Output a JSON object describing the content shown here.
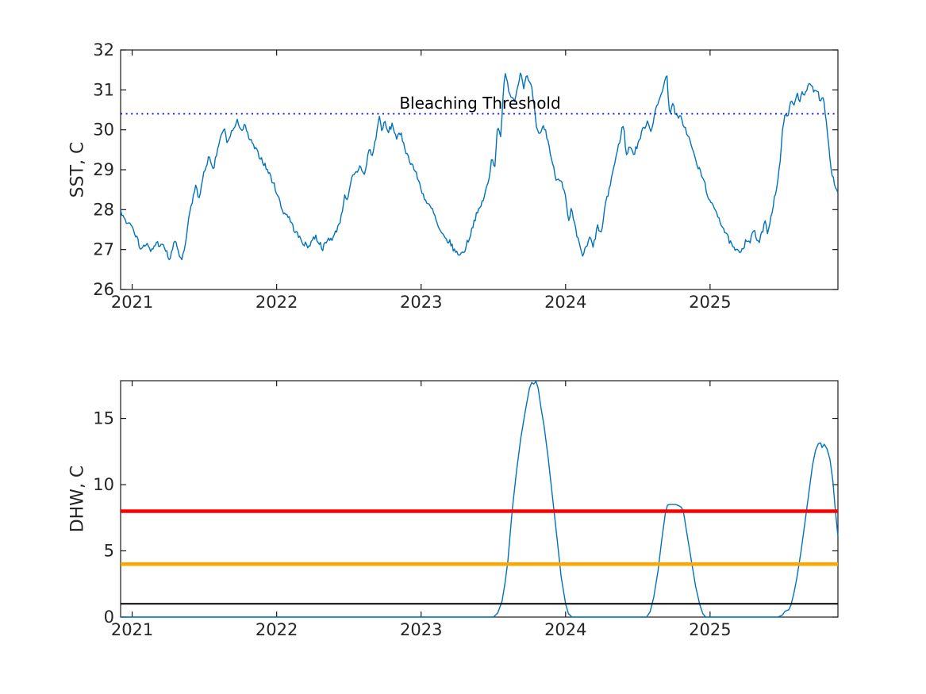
{
  "figure": {
    "background": "#ffffff",
    "axes_color": "#1a1a1a",
    "tick_label_color": "#262626"
  },
  "chart_data": [
    {
      "type": "line",
      "title": "",
      "xlabel": "",
      "ylabel": "SST, C",
      "xlim": [
        2020.92,
        2025.885
      ],
      "ylim": [
        26,
        32
      ],
      "xticks": [
        2021,
        2022,
        2023,
        2024,
        2025
      ],
      "yticks": [
        26,
        27,
        28,
        29,
        30,
        31,
        32
      ],
      "grid": false,
      "legend": null,
      "annotation": {
        "text": "Bleaching Threshold",
        "x": 2023.41,
        "y": 30.52
      },
      "ref_lines": [
        {
          "name": "bleaching-threshold",
          "value": 30.4,
          "color": "#0000ee",
          "style": "dotted",
          "width": 1.8
        }
      ],
      "series": [
        {
          "name": "SST",
          "color": "#0072BD",
          "width": 1.4,
          "noise_amp": 0.07,
          "noise_slow_amp": 0.1,
          "noise_seed": 7,
          "points": [
            [
              2020.92,
              28.05
            ],
            [
              2020.95,
              27.85
            ],
            [
              2021.0,
              27.55
            ],
            [
              2021.03,
              27.25
            ],
            [
              2021.06,
              27.0
            ],
            [
              2021.1,
              27.15
            ],
            [
              2021.13,
              26.95
            ],
            [
              2021.17,
              27.2
            ],
            [
              2021.22,
              27.1
            ],
            [
              2021.26,
              26.7
            ],
            [
              2021.3,
              27.25
            ],
            [
              2021.34,
              26.75
            ],
            [
              2021.36,
              27.0
            ],
            [
              2021.4,
              27.9
            ],
            [
              2021.44,
              28.6
            ],
            [
              2021.46,
              28.3
            ],
            [
              2021.5,
              29.0
            ],
            [
              2021.53,
              29.35
            ],
            [
              2021.56,
              29.0
            ],
            [
              2021.59,
              29.5
            ],
            [
              2021.62,
              29.9
            ],
            [
              2021.64,
              30.05
            ],
            [
              2021.66,
              29.6
            ],
            [
              2021.69,
              29.9
            ],
            [
              2021.73,
              30.25
            ],
            [
              2021.76,
              29.9
            ],
            [
              2021.78,
              30.1
            ],
            [
              2021.81,
              29.85
            ],
            [
              2021.85,
              29.6
            ],
            [
              2021.9,
              29.3
            ],
            [
              2021.95,
              28.9
            ],
            [
              2022.0,
              28.4
            ],
            [
              2022.06,
              27.9
            ],
            [
              2022.12,
              27.5
            ],
            [
              2022.17,
              27.2
            ],
            [
              2022.22,
              27.0
            ],
            [
              2022.27,
              27.3
            ],
            [
              2022.32,
              26.95
            ],
            [
              2022.36,
              27.2
            ],
            [
              2022.39,
              27.35
            ],
            [
              2022.45,
              27.9
            ],
            [
              2022.47,
              28.45
            ],
            [
              2022.49,
              28.2
            ],
            [
              2022.52,
              28.8
            ],
            [
              2022.55,
              29.0
            ],
            [
              2022.58,
              29.2
            ],
            [
              2022.61,
              28.9
            ],
            [
              2022.64,
              29.5
            ],
            [
              2022.66,
              29.3
            ],
            [
              2022.69,
              29.9
            ],
            [
              2022.71,
              30.35
            ],
            [
              2022.73,
              30.0
            ],
            [
              2022.75,
              30.2
            ],
            [
              2022.77,
              29.9
            ],
            [
              2022.8,
              30.05
            ],
            [
              2022.83,
              29.75
            ],
            [
              2022.86,
              29.85
            ],
            [
              2022.9,
              29.4
            ],
            [
              2022.94,
              29.15
            ],
            [
              2022.98,
              28.8
            ],
            [
              2023.02,
              28.4
            ],
            [
              2023.08,
              27.9
            ],
            [
              2023.13,
              27.5
            ],
            [
              2023.19,
              27.2
            ],
            [
              2023.24,
              26.95
            ],
            [
              2023.3,
              27.0
            ],
            [
              2023.34,
              27.3
            ],
            [
              2023.38,
              27.8
            ],
            [
              2023.43,
              28.2
            ],
            [
              2023.47,
              28.7
            ],
            [
              2023.49,
              29.3
            ],
            [
              2023.51,
              29.0
            ],
            [
              2023.53,
              30.1
            ],
            [
              2023.55,
              29.9
            ],
            [
              2023.565,
              30.7
            ],
            [
              2023.58,
              31.47
            ],
            [
              2023.6,
              31.1
            ],
            [
              2023.62,
              30.85
            ],
            [
              2023.65,
              30.7
            ],
            [
              2023.67,
              31.1
            ],
            [
              2023.69,
              31.37
            ],
            [
              2023.71,
              31.0
            ],
            [
              2023.73,
              31.25
            ],
            [
              2023.75,
              31.1
            ],
            [
              2023.77,
              30.9
            ],
            [
              2023.785,
              30.45
            ],
            [
              2023.8,
              29.95
            ],
            [
              2023.82,
              29.8
            ],
            [
              2023.84,
              30.0
            ],
            [
              2023.86,
              29.9
            ],
            [
              2023.88,
              29.6
            ],
            [
              2023.91,
              29.1
            ],
            [
              2023.94,
              28.7
            ],
            [
              2023.97,
              28.75
            ],
            [
              2024.0,
              28.4
            ],
            [
              2024.02,
              27.7
            ],
            [
              2024.04,
              28.0
            ],
            [
              2024.07,
              27.5
            ],
            [
              2024.09,
              27.2
            ],
            [
              2024.12,
              26.8
            ],
            [
              2024.14,
              27.0
            ],
            [
              2024.17,
              27.3
            ],
            [
              2024.19,
              27.0
            ],
            [
              2024.22,
              27.5
            ],
            [
              2024.25,
              27.3
            ],
            [
              2024.27,
              28.0
            ],
            [
              2024.31,
              28.6
            ],
            [
              2024.36,
              29.5
            ],
            [
              2024.4,
              30.15
            ],
            [
              2024.42,
              29.3
            ],
            [
              2024.45,
              29.6
            ],
            [
              2024.47,
              29.35
            ],
            [
              2024.49,
              29.55
            ],
            [
              2024.53,
              30.0
            ],
            [
              2024.57,
              30.3
            ],
            [
              2024.59,
              30.05
            ],
            [
              2024.62,
              30.55
            ],
            [
              2024.66,
              30.9
            ],
            [
              2024.68,
              31.05
            ],
            [
              2024.7,
              31.3
            ],
            [
              2024.72,
              30.35
            ],
            [
              2024.74,
              30.6
            ],
            [
              2024.77,
              30.3
            ],
            [
              2024.8,
              30.4
            ],
            [
              2024.84,
              29.9
            ],
            [
              2024.87,
              29.6
            ],
            [
              2024.9,
              29.2
            ],
            [
              2024.94,
              28.8
            ],
            [
              2024.97,
              28.5
            ],
            [
              2025.0,
              28.2
            ],
            [
              2025.04,
              27.9
            ],
            [
              2025.08,
              27.6
            ],
            [
              2025.12,
              27.25
            ],
            [
              2025.16,
              27.0
            ],
            [
              2025.2,
              26.85
            ],
            [
              2025.25,
              27.3
            ],
            [
              2025.28,
              27.1
            ],
            [
              2025.3,
              27.45
            ],
            [
              2025.34,
              27.15
            ],
            [
              2025.38,
              27.7
            ],
            [
              2025.4,
              27.5
            ],
            [
              2025.44,
              28.2
            ],
            [
              2025.47,
              28.8
            ],
            [
              2025.49,
              29.4
            ],
            [
              2025.5,
              29.9
            ],
            [
              2025.52,
              30.45
            ],
            [
              2025.54,
              30.2
            ],
            [
              2025.56,
              30.7
            ],
            [
              2025.58,
              30.5
            ],
            [
              2025.6,
              30.9
            ],
            [
              2025.62,
              30.7
            ],
            [
              2025.64,
              30.95
            ],
            [
              2025.66,
              30.8
            ],
            [
              2025.68,
              31.0
            ],
            [
              2025.7,
              31.07
            ],
            [
              2025.72,
              30.9
            ],
            [
              2025.74,
              31.0
            ],
            [
              2025.76,
              30.7
            ],
            [
              2025.78,
              30.8
            ],
            [
              2025.8,
              30.3
            ],
            [
              2025.82,
              29.6
            ],
            [
              2025.84,
              29.0
            ],
            [
              2025.86,
              28.7
            ],
            [
              2025.885,
              28.45
            ]
          ]
        }
      ]
    },
    {
      "type": "line",
      "title": "",
      "xlabel": "",
      "ylabel": "DHW, C",
      "xlim": [
        2020.92,
        2025.885
      ],
      "ylim": [
        0,
        17.85
      ],
      "xticks": [
        2021,
        2022,
        2023,
        2024,
        2025
      ],
      "yticks": [
        0,
        5,
        10,
        15
      ],
      "grid": false,
      "legend": null,
      "annotation": null,
      "ref_lines": [
        {
          "name": "dhw-alert-level-8",
          "value": 8,
          "color": "#ff0000",
          "style": "solid",
          "width": 4.5
        },
        {
          "name": "dhw-warning-level-4",
          "value": 4,
          "color": "#ffa500",
          "style": "solid",
          "width": 4.5
        },
        {
          "name": "dhw-watch-level-1",
          "value": 1,
          "color": "#000000",
          "style": "solid",
          "width": 2
        }
      ],
      "series": [
        {
          "name": "DHW",
          "color": "#0072BD",
          "width": 1.4,
          "points": [
            [
              2020.92,
              0
            ],
            [
              2023.5,
              0
            ],
            [
              2023.53,
              0.3
            ],
            [
              2023.56,
              1.2
            ],
            [
              2023.58,
              2.5
            ],
            [
              2023.6,
              4.2
            ],
            [
              2023.63,
              8.0
            ],
            [
              2023.66,
              11.0
            ],
            [
              2023.69,
              13.5
            ],
            [
              2023.72,
              15.5
            ],
            [
              2023.75,
              17.3
            ],
            [
              2023.765,
              17.7
            ],
            [
              2023.78,
              17.6
            ],
            [
              2023.795,
              17.8
            ],
            [
              2023.81,
              17.3
            ],
            [
              2023.83,
              15.8
            ],
            [
              2023.85,
              14.5
            ],
            [
              2023.88,
              12.0
            ],
            [
              2023.91,
              9.0
            ],
            [
              2023.94,
              6.0
            ],
            [
              2023.97,
              3.0
            ],
            [
              2024.0,
              1.0
            ],
            [
              2024.02,
              0.25
            ],
            [
              2024.045,
              0
            ],
            [
              2024.56,
              0
            ],
            [
              2024.585,
              0.4
            ],
            [
              2024.61,
              1.5
            ],
            [
              2024.64,
              3.5
            ],
            [
              2024.665,
              5.8
            ],
            [
              2024.69,
              7.8
            ],
            [
              2024.705,
              8.45
            ],
            [
              2024.72,
              8.5
            ],
            [
              2024.76,
              8.5
            ],
            [
              2024.775,
              8.45
            ],
            [
              2024.8,
              8.3
            ],
            [
              2024.815,
              8.0
            ],
            [
              2024.84,
              6.3
            ],
            [
              2024.87,
              4.3
            ],
            [
              2024.9,
              2.3
            ],
            [
              2024.93,
              0.9
            ],
            [
              2024.95,
              0.25
            ],
            [
              2024.97,
              0
            ],
            [
              2025.47,
              0
            ],
            [
              2025.5,
              0.15
            ],
            [
              2025.52,
              0.45
            ],
            [
              2025.545,
              0.55
            ],
            [
              2025.56,
              0.9
            ],
            [
              2025.58,
              1.8
            ],
            [
              2025.6,
              2.9
            ],
            [
              2025.63,
              5.0
            ],
            [
              2025.66,
              7.4
            ],
            [
              2025.69,
              9.9
            ],
            [
              2025.71,
              11.5
            ],
            [
              2025.73,
              12.6
            ],
            [
              2025.75,
              13.1
            ],
            [
              2025.765,
              13.15
            ],
            [
              2025.775,
              12.8
            ],
            [
              2025.79,
              13.05
            ],
            [
              2025.81,
              12.7
            ],
            [
              2025.83,
              11.9
            ],
            [
              2025.85,
              10.3
            ],
            [
              2025.865,
              8.3
            ],
            [
              2025.885,
              6.1
            ]
          ]
        }
      ]
    }
  ]
}
